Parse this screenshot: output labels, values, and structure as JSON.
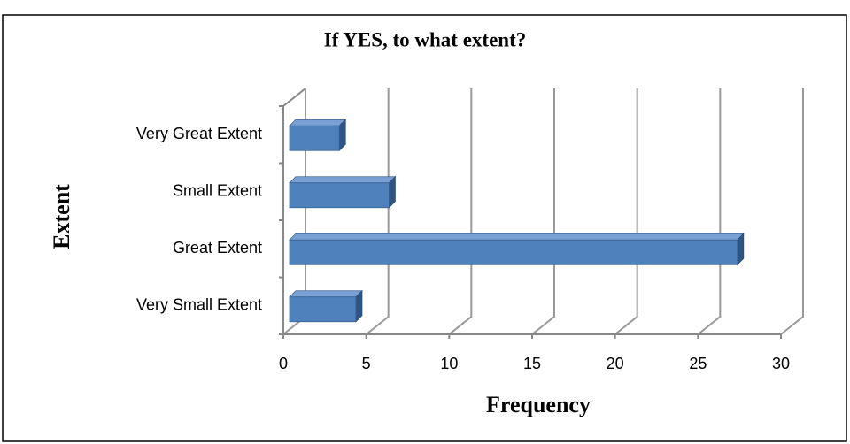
{
  "chart_data": {
    "type": "bar3d",
    "orientation": "horizontal",
    "title": "If YES, to what  extent?",
    "x_label": "Frequency",
    "y_label": "Extent",
    "categories": [
      "Very Small Extent",
      "Great Extent",
      "Small Extent",
      "Very Great Extent"
    ],
    "values": [
      4,
      27,
      6,
      3
    ],
    "color": "#4f81bd",
    "xlim": [
      0,
      30
    ],
    "xticks": [
      0,
      5,
      10,
      15,
      20,
      25,
      30
    ],
    "grid": true
  }
}
